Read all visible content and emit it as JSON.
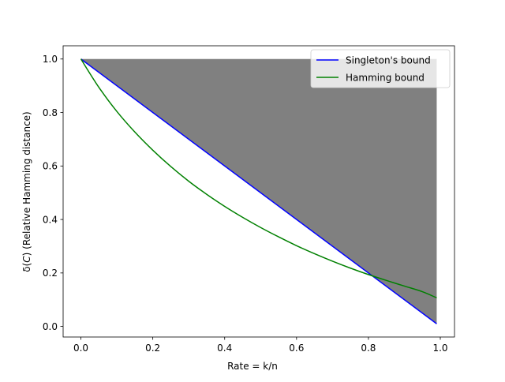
{
  "chart_data": {
    "type": "line",
    "title": "",
    "xlabel": "Rate = k/n",
    "ylabel_prefix": "δ(",
    "ylabel_var": "C",
    "ylabel_suffix": ") (Relative Hamming distance)",
    "xlim": [
      -0.0495,
      1.0395
    ],
    "ylim": [
      -0.0395,
      1.0495
    ],
    "xticks": [
      0.0,
      0.2,
      0.4,
      0.6,
      0.8,
      1.0
    ],
    "xtick_labels": [
      "0.0",
      "0.2",
      "0.4",
      "0.6",
      "0.8",
      "1.0"
    ],
    "yticks": [
      0.0,
      0.2,
      0.4,
      0.6,
      0.8,
      1.0
    ],
    "ytick_labels": [
      "0.0",
      "0.2",
      "0.4",
      "0.6",
      "0.8",
      "1.0"
    ],
    "grid": false,
    "legend_position": "upper-right",
    "series": [
      {
        "name": "Singleton's bound",
        "color": "#0000ff",
        "x": [
          0.0,
          0.99
        ],
        "y": [
          1.0,
          0.01
        ]
      },
      {
        "name": "Hamming bound",
        "color": "#008000",
        "x": [
          0.0,
          0.05,
          0.1,
          0.15,
          0.2,
          0.25,
          0.3,
          0.35,
          0.4,
          0.45,
          0.5,
          0.55,
          0.6,
          0.65,
          0.7,
          0.75,
          0.8,
          0.85,
          0.9,
          0.95,
          0.99
        ],
        "y": [
          1.0,
          0.894,
          0.804,
          0.727,
          0.659,
          0.598,
          0.543,
          0.494,
          0.449,
          0.408,
          0.37,
          0.335,
          0.302,
          0.272,
          0.244,
          0.218,
          0.194,
          0.172,
          0.151,
          0.13,
          0.107
        ]
      }
    ],
    "shaded_region": {
      "color": "#808080",
      "x": [
        0.0,
        0.99
      ],
      "y_upper": [
        1.0,
        1.0
      ],
      "y_lower": [
        1.0,
        0.01
      ]
    }
  }
}
